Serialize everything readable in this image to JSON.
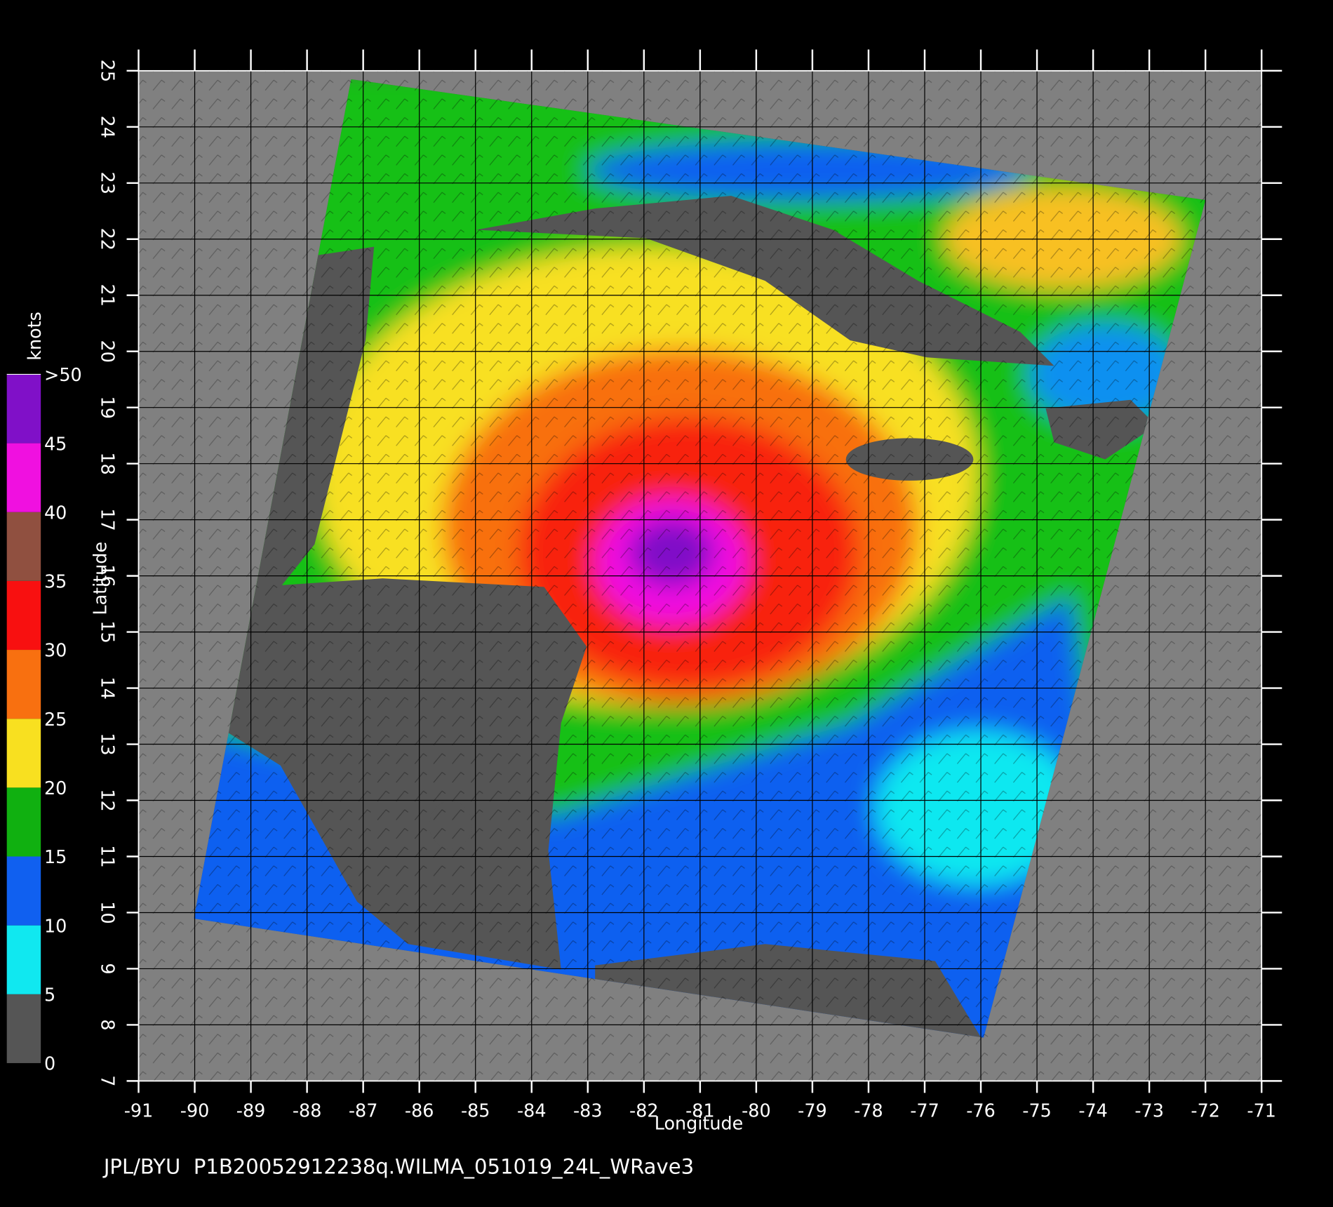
{
  "map": {
    "footer": "JPL/BYU  P1B20052912238q.WILMA_051019_24L_WRave3",
    "x_label": "Longitude",
    "y_label": "Latitude",
    "xlim": [
      -91,
      -71
    ],
    "ylim": [
      7,
      25
    ],
    "xticks": [
      -91,
      -90,
      -89,
      -88,
      -87,
      -86,
      -85,
      -84,
      -83,
      -82,
      -81,
      -80,
      -79,
      -78,
      -77,
      -76,
      -75,
      -74,
      -73,
      -72,
      -71
    ],
    "yticks": [
      7,
      8,
      9,
      10,
      11,
      12,
      13,
      14,
      15,
      16,
      17,
      18,
      19,
      20,
      21,
      22,
      23,
      24,
      25
    ],
    "grid": true,
    "colorbar": {
      "title": "knots",
      "ticks": [
        0,
        5,
        10,
        15,
        20,
        25,
        30,
        35,
        40,
        45,
        {
          "value": 50,
          "label": ">50"
        }
      ],
      "colors": [
        "#555555",
        "#10e8f0",
        "#1060f0",
        "#10b010",
        "#f8e020",
        "#f87010",
        "#f81010",
        "#905040",
        "#f010e0",
        "#8010c8"
      ]
    }
  }
}
